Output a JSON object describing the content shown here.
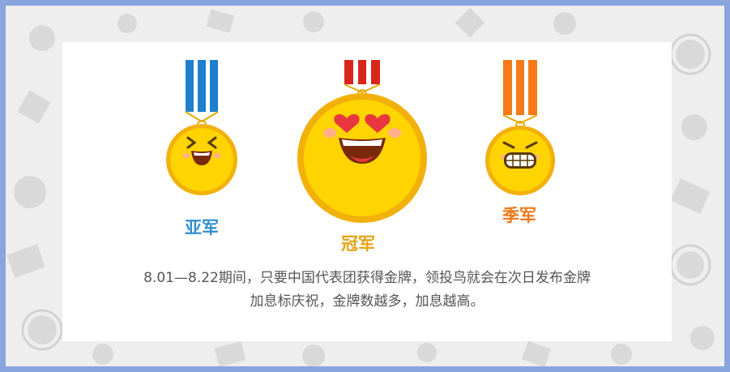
{
  "medals": {
    "silver": {
      "label": "亚军",
      "color": "#2e8fd0",
      "ribbon": "#1e7fcf",
      "face": "laughing-squint"
    },
    "gold": {
      "label": "冠军",
      "color": "#e2a413",
      "ribbon": "#d9251c",
      "face": "heart-eyes"
    },
    "bronze": {
      "label": "季军",
      "color": "#f07818",
      "ribbon": "#f47b17",
      "face": "big-grin"
    }
  },
  "caption": {
    "line1": "8.01—8.22期间，只要中国代表团获得金牌，领投鸟就会在次日发布金牌",
    "line2": "加息标庆祝，金牌数越多，加息越高。"
  },
  "colors": {
    "frame": "#8aa4de",
    "background": "#eeeeee",
    "medal_fill": "#ffd400",
    "medal_rim": "#f2b10a"
  }
}
